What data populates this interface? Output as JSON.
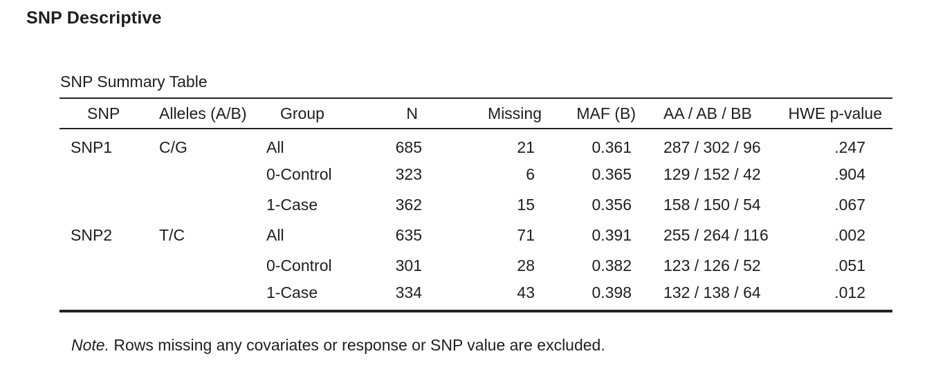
{
  "page_title": "SNP Descriptive",
  "table": {
    "title": "SNP Summary Table",
    "columns": [
      "SNP",
      "Alleles (A/B)",
      "Group",
      "N",
      "Missing",
      "MAF (B)",
      "AA / AB / BB",
      "HWE p-value"
    ],
    "rows": [
      {
        "snp": "SNP1",
        "alleles": "C/G",
        "group": "All",
        "n": "685",
        "missing": "21",
        "maf": "0.361",
        "genotypes": "287 / 302 / 96",
        "hwe": ".247"
      },
      {
        "snp": "",
        "alleles": "",
        "group": "0-Control",
        "n": "323",
        "missing": "6",
        "maf": "0.365",
        "genotypes": "129 / 152 / 42",
        "hwe": ".904"
      },
      {
        "snp": "",
        "alleles": "",
        "group": "1-Case",
        "n": "362",
        "missing": "15",
        "maf": "0.356",
        "genotypes": "158 / 150 / 54",
        "hwe": ".067"
      },
      {
        "snp": "SNP2",
        "alleles": "T/C",
        "group": "All",
        "n": "635",
        "missing": "71",
        "maf": "0.391",
        "genotypes": "255 / 264 / 116",
        "hwe": ".002"
      },
      {
        "snp": "",
        "alleles": "",
        "group": "0-Control",
        "n": "301",
        "missing": "28",
        "maf": "0.382",
        "genotypes": "123 / 126 / 52",
        "hwe": ".051"
      },
      {
        "snp": "",
        "alleles": "",
        "group": "1-Case",
        "n": "334",
        "missing": "43",
        "maf": "0.398",
        "genotypes": "132 / 138 / 64",
        "hwe": ".012"
      }
    ]
  },
  "note": {
    "label": "Note.",
    "text": " Rows missing any covariates or response or SNP value are excluded."
  }
}
